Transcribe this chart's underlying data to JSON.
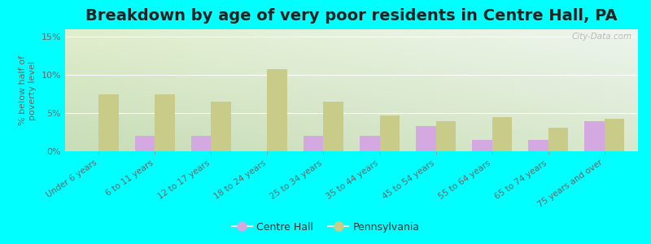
{
  "title": "Breakdown by age of very poor residents in Centre Hall, PA",
  "ylabel": "% below half of\npoverty level",
  "categories": [
    "Under 6 years",
    "6 to 11 years",
    "12 to 17 years",
    "18 to 24 years",
    "25 to 34 years",
    "35 to 44 years",
    "45 to 54 years",
    "55 to 64 years",
    "65 to 74 years",
    "75 years and over"
  ],
  "centre_hall": [
    0,
    2.0,
    2.0,
    0,
    2.0,
    2.0,
    3.3,
    1.5,
    1.5,
    4.0
  ],
  "pennsylvania": [
    7.5,
    7.5,
    6.5,
    10.8,
    6.5,
    4.7,
    4.0,
    4.5,
    3.1,
    4.3
  ],
  "centre_hall_color": "#d4a8e0",
  "pennsylvania_color": "#c8cc88",
  "bg_color_top_left": "#d8edcc",
  "bg_color_top_right": "#f0f5ee",
  "bg_color_bottom": "#c8ddb8",
  "outer_bg": "#00ffff",
  "ylim": [
    0,
    16
  ],
  "yticks": [
    0,
    5,
    10,
    15
  ],
  "ytick_labels": [
    "0%",
    "5%",
    "10%",
    "15%"
  ],
  "title_fontsize": 14,
  "bar_width": 0.35,
  "watermark": "City-Data.com"
}
